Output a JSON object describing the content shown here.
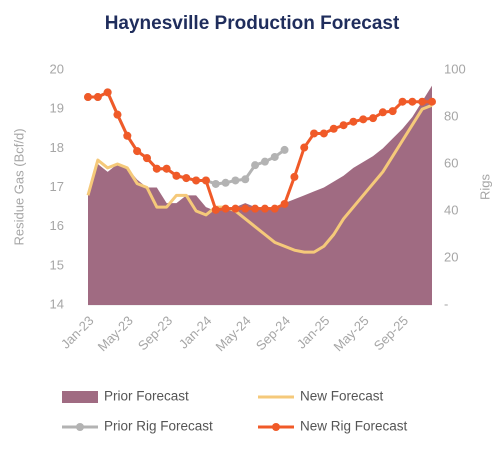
{
  "chart_data": {
    "type": "line",
    "title": "Haynesville Production Forecast",
    "y_label": "Residue Gas (Bcf/d)",
    "y2_label": "Rigs",
    "categories": [
      "Jan-23",
      null,
      null,
      null,
      "May-23",
      null,
      null,
      null,
      "Sep-23",
      null,
      null,
      null,
      "Jan-24",
      null,
      null,
      null,
      "May-24",
      null,
      null,
      null,
      "Sep-24",
      null,
      null,
      null,
      "Jan-25",
      null,
      null,
      null,
      "May-25",
      null,
      null,
      null,
      "Sep-25",
      null,
      null,
      null
    ],
    "ylim": [
      14,
      20
    ],
    "yticks": [
      14,
      15,
      16,
      17,
      18,
      19,
      20
    ],
    "y2lim": [
      0,
      100
    ],
    "y2ticks": [
      {
        "value": 0,
        "label": "-"
      },
      20,
      40,
      60,
      80,
      100
    ],
    "series": [
      {
        "name": "Prior Forecast",
        "type": "area",
        "color": "#a06b82",
        "values": [
          16.8,
          17.6,
          17.4,
          17.6,
          17.5,
          17.2,
          17.0,
          17.0,
          16.6,
          16.6,
          16.8,
          16.8,
          16.5,
          16.4,
          16.5,
          16.5,
          16.6,
          16.5,
          16.5,
          16.5,
          16.6,
          16.7,
          16.8,
          16.9,
          17.0,
          17.15,
          17.3,
          17.5,
          17.65,
          17.8,
          18.0,
          18.25,
          18.5,
          18.8,
          19.2,
          19.6
        ]
      },
      {
        "name": "New Forecast",
        "type": "line",
        "color": "#f5c97a",
        "values": [
          16.8,
          17.7,
          17.5,
          17.6,
          17.5,
          17.1,
          17.0,
          16.5,
          16.5,
          16.8,
          16.8,
          16.4,
          16.3,
          16.5,
          16.5,
          16.4,
          16.2,
          16.0,
          15.8,
          15.6,
          15.5,
          15.4,
          15.35,
          15.35,
          15.5,
          15.8,
          16.2,
          16.5,
          16.8,
          17.1,
          17.4,
          17.8,
          18.2,
          18.6,
          19.0,
          19.1
        ]
      },
      {
        "name": "Prior Rig Forecast",
        "type": "line",
        "markers": true,
        "axis": "y2",
        "color": "#b3b3b3",
        "values": [
          88.5,
          88.5,
          90.5,
          81,
          72,
          65.5,
          62.5,
          58,
          58,
          55,
          54,
          53,
          53,
          51.5,
          52,
          53,
          53.5,
          59.5,
          61,
          63,
          66,
          null,
          null,
          null,
          null,
          null,
          null,
          null,
          null,
          null,
          null,
          null,
          null,
          null,
          null,
          null
        ]
      },
      {
        "name": "New Rig Forecast",
        "type": "line",
        "markers": true,
        "axis": "y2",
        "color": "#f05a28",
        "values": [
          88.5,
          88.5,
          90.5,
          81,
          72,
          65.5,
          62.5,
          58,
          58,
          55,
          54,
          53,
          53,
          40.5,
          41,
          41,
          41,
          41,
          41,
          41,
          43,
          54.5,
          67,
          73,
          73,
          75,
          76.5,
          78,
          79,
          79.5,
          82,
          82.5,
          86.5,
          86.5,
          86.5,
          86.5
        ]
      }
    ]
  }
}
